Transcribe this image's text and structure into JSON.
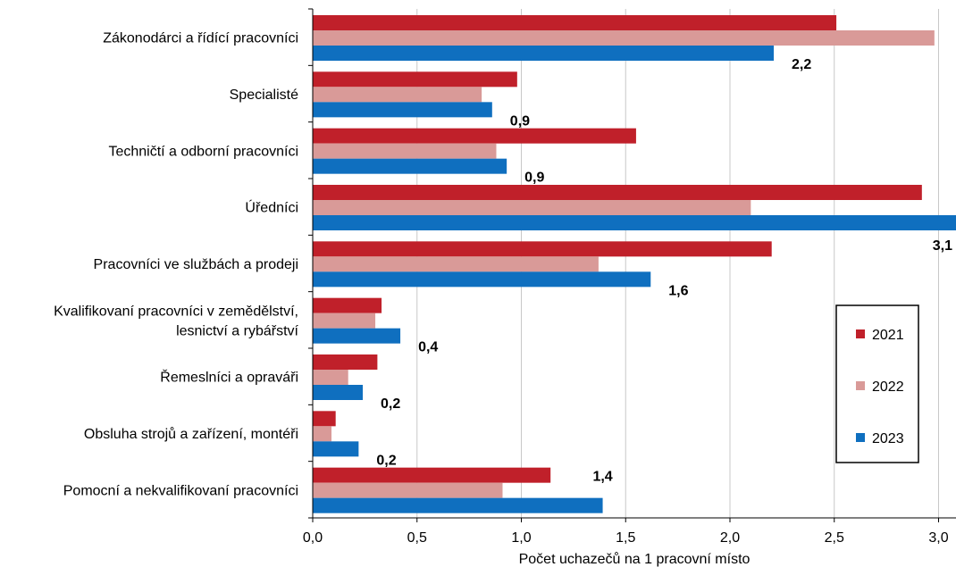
{
  "chart_data": {
    "type": "bar",
    "orientation": "horizontal",
    "categories": [
      [
        "Zákonodárci a řídící pracovníci"
      ],
      [
        "Specialisté"
      ],
      [
        "Techničtí a odborní pracovníci"
      ],
      [
        "Úředníci"
      ],
      [
        "Pracovníci ve službách a prodeji"
      ],
      [
        "Kvalifikovaní pracovníci v zemědělství,",
        "lesnictví a rybářství"
      ],
      [
        "Řemeslníci a opraváři"
      ],
      [
        "Obsluha strojů a zařízení, montéři"
      ],
      [
        "Pomocní a nekvalifikovaní pracovníci"
      ]
    ],
    "series": [
      {
        "name": "2021",
        "color": "#c0202a",
        "values": [
          2.51,
          0.98,
          1.55,
          2.92,
          2.2,
          0.33,
          0.31,
          0.11,
          1.14
        ]
      },
      {
        "name": "2022",
        "color": "#d99a98",
        "values": [
          2.98,
          0.81,
          0.88,
          2.1,
          1.37,
          0.3,
          0.17,
          0.09,
          0.91
        ]
      },
      {
        "name": "2023",
        "color": "#0f6fbf",
        "values": [
          2.21,
          0.86,
          0.93,
          3.09,
          1.62,
          0.42,
          0.24,
          0.22,
          1.39
        ]
      }
    ],
    "data_labels": [
      "2,2",
      "0,9",
      "0,9",
      "3,1",
      "1,6",
      "0,4",
      "0,2",
      "0,2",
      "1,4"
    ],
    "data_labels_series": "2023",
    "x_ticks": [
      "0,0",
      "0,5",
      "1,0",
      "1,5",
      "2,0",
      "2,5",
      "3,0"
    ],
    "xlim": [
      0,
      3.1
    ],
    "xlabel": "Počet uchazečů na 1 pracovní místo",
    "ylabel": "",
    "title": "",
    "grid": "vertical",
    "legend_position": "right"
  }
}
